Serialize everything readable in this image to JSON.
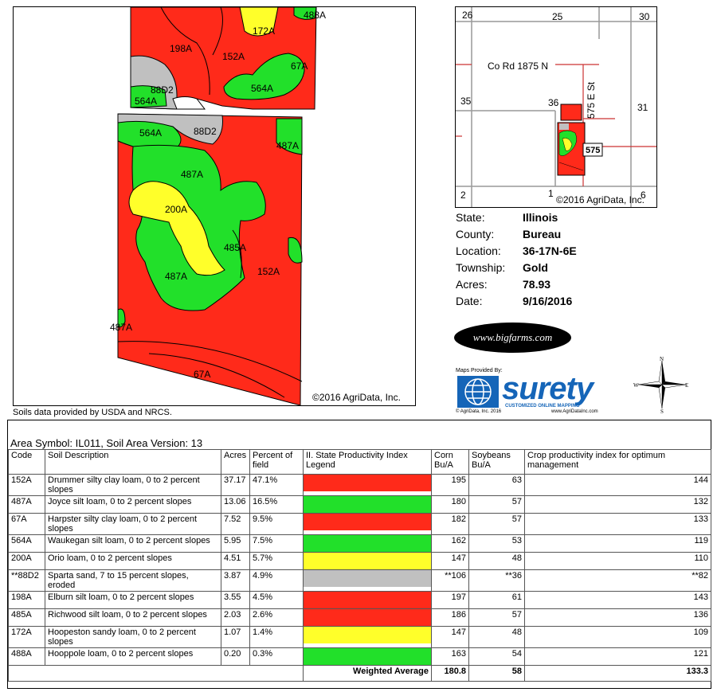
{
  "main_map": {
    "copyright": "©2016 AgriData, Inc.",
    "labels": [
      "172A",
      "488A",
      "198A",
      "152A",
      "67A",
      "88D2",
      "564A",
      "564A",
      "564A",
      "88D2",
      "487A",
      "487A",
      "200A",
      "485A",
      "152A",
      "487A",
      "487A",
      "67A"
    ],
    "colors": {
      "red": "#ff2a1a",
      "green": "#22e02a",
      "yellow": "#ffff2a",
      "gray": "#c0c0c0"
    }
  },
  "locator_map": {
    "sections": [
      "26",
      "25",
      "30",
      "35",
      "36",
      "31",
      "2",
      "1",
      "6"
    ],
    "roads": [
      "Co Rd 1875 N",
      "575 E St"
    ],
    "badge": "575",
    "copyright": "©2016 AgriData, Inc."
  },
  "info": [
    {
      "key": "State:",
      "value": "Illinois"
    },
    {
      "key": "County:",
      "value": "Bureau"
    },
    {
      "key": "Location:",
      "value": "36-17N-6E"
    },
    {
      "key": "Township:",
      "value": "Gold"
    },
    {
      "key": "Acres:",
      "value": "78.93"
    },
    {
      "key": "Date:",
      "value": "9/16/2016"
    }
  ],
  "logos": {
    "bigfarms": "www.bigfarms.com",
    "maps_provided": "Maps Provided By:",
    "surety": "surety",
    "surety_tag": "CUSTOMIZED ONLINE MAPPING",
    "surety_left": "© AgriData, Inc. 2016",
    "surety_right": "www.AgriDataInc.com",
    "compass": {
      "n": "N",
      "s": "S",
      "e": "E",
      "w": "W"
    }
  },
  "soils_note": "Soils data provided by USDA and NRCS.",
  "table": {
    "area_symbol": "Area Symbol: IL011, Soil Area Version: 13",
    "headers": [
      "Code",
      "Soil Description",
      "Acres",
      "Percent of field",
      "II. State Productivity Index Legend",
      "Corn Bu/A",
      "Soybeans Bu/A",
      "Crop productivity index for optimum management"
    ],
    "rows": [
      {
        "code": "152A",
        "desc": "Drummer silty clay loam, 0 to 2 percent slopes",
        "acres": "37.17",
        "pct": "47.1%",
        "color": "#ff2a1a",
        "corn": "195",
        "soy": "63",
        "cpi": "144"
      },
      {
        "code": "487A",
        "desc": "Joyce silt loam, 0 to 2 percent slopes",
        "acres": "13.06",
        "pct": "16.5%",
        "color": "#22e02a",
        "corn": "180",
        "soy": "57",
        "cpi": "132"
      },
      {
        "code": "67A",
        "desc": "Harpster silty clay loam, 0 to 2 percent slopes",
        "acres": "7.52",
        "pct": "9.5%",
        "color": "#ff2a1a",
        "corn": "182",
        "soy": "57",
        "cpi": "133"
      },
      {
        "code": "564A",
        "desc": "Waukegan silt loam, 0 to 2 percent slopes",
        "acres": "5.95",
        "pct": "7.5%",
        "color": "#22e02a",
        "corn": "162",
        "soy": "53",
        "cpi": "119"
      },
      {
        "code": "200A",
        "desc": "Orio loam, 0 to 2 percent slopes",
        "acres": "4.51",
        "pct": "5.7%",
        "color": "#ffff2a",
        "corn": "147",
        "soy": "48",
        "cpi": "110"
      },
      {
        "code": "**88D2",
        "desc": "Sparta sand, 7 to 15 percent slopes, eroded",
        "acres": "3.87",
        "pct": "4.9%",
        "color": "#c0c0c0",
        "corn": "**106",
        "soy": "**36",
        "cpi": "**82"
      },
      {
        "code": "198A",
        "desc": "Elburn silt loam, 0 to 2 percent slopes",
        "acres": "3.55",
        "pct": "4.5%",
        "color": "#ff2a1a",
        "corn": "197",
        "soy": "61",
        "cpi": "143"
      },
      {
        "code": "485A",
        "desc": "Richwood silt loam, 0 to 2 percent slopes",
        "acres": "2.03",
        "pct": "2.6%",
        "color": "#ff2a1a",
        "corn": "186",
        "soy": "57",
        "cpi": "136"
      },
      {
        "code": "172A",
        "desc": "Hoopeston sandy loam, 0 to 2 percent slopes",
        "acres": "1.07",
        "pct": "1.4%",
        "color": "#ffff2a",
        "corn": "147",
        "soy": "48",
        "cpi": "109"
      },
      {
        "code": "488A",
        "desc": "Hooppole loam, 0 to 2 percent slopes",
        "acres": "0.20",
        "pct": "0.3%",
        "color": "#22e02a",
        "corn": "163",
        "soy": "54",
        "cpi": "121"
      }
    ],
    "weighted": {
      "label": "Weighted Average",
      "corn": "180.8",
      "soy": "58",
      "cpi": "133.3"
    }
  }
}
